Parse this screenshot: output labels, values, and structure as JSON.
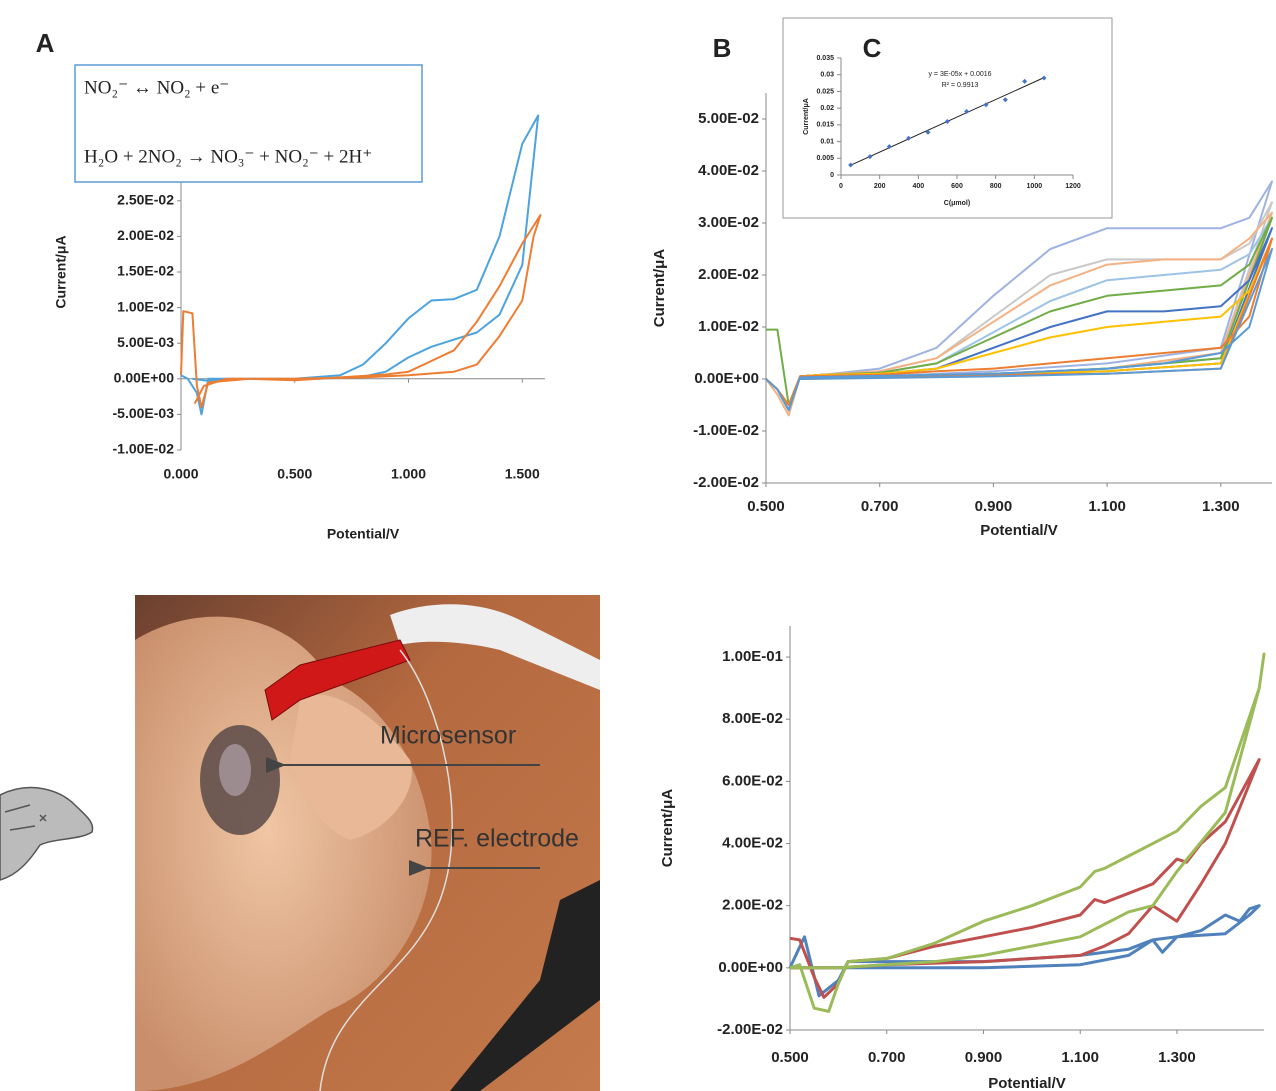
{
  "chart_data": [
    {
      "type": "line",
      "panel": "A",
      "x_label": "Potential/V",
      "y_label": "Current/μA",
      "annotations": [
        "NO₂⁻ ↔ NO₂ + e⁻",
        "H₂O + 2NO₂ → NO₃⁻ + NO₂⁻ + 2H⁺"
      ],
      "xlim": [
        0,
        1.6
      ],
      "ylim": [
        -0.01,
        0.04
      ],
      "xticks": [
        {
          "value": 0,
          "label": "0.000"
        },
        {
          "value": 0.5,
          "label": "0.500"
        },
        {
          "value": 1,
          "label": "1.000"
        },
        {
          "value": 1.5,
          "label": "1.500"
        }
      ],
      "yticks": [
        {
          "value": -0.01,
          "label": "-1.00E-02"
        },
        {
          "value": -0.005,
          "label": "-5.00E-03"
        },
        {
          "value": 0,
          "label": "0.00E+00"
        },
        {
          "value": 0.005,
          "label": "5.00E-03"
        },
        {
          "value": 0.01,
          "label": "1.00E-02"
        },
        {
          "value": 0.015,
          "label": "1.50E-02"
        },
        {
          "value": 0.02,
          "label": "2.00E-02"
        },
        {
          "value": 0.025,
          "label": "2.50E-02"
        }
      ],
      "series": [
        {
          "color": "#4da3dd",
          "x": [
            0,
            0.03,
            0.07,
            0.09,
            0.12,
            0.3,
            0.5,
            0.7,
            0.8,
            0.9,
            1.0,
            1.1,
            1.2,
            1.3,
            1.4,
            1.5,
            1.57,
            1.5,
            1.4,
            1.3,
            1.2,
            1.1,
            1.0,
            0.9,
            0.8,
            0.6,
            0.3,
            0.12,
            0.05
          ],
          "values": [
            0.0005,
            0,
            -0.002,
            -0.005,
            0,
            0,
            0,
            0.0005,
            0.002,
            0.005,
            0.0085,
            0.011,
            0.0112,
            0.0125,
            0.02,
            0.033,
            0.037,
            0.016,
            0.009,
            0.0065,
            0.0055,
            0.0045,
            0.003,
            0.001,
            0.0003,
            0,
            0,
            -0.0003,
            0
          ]
        },
        {
          "color": "#ed7d31",
          "x": [
            0,
            0.01,
            0.05,
            0.07,
            0.09,
            0.12,
            0.3,
            0.5,
            0.7,
            0.9,
            1.0,
            1.1,
            1.2,
            1.3,
            1.4,
            1.5,
            1.58,
            1.55,
            1.5,
            1.4,
            1.3,
            1.2,
            1.0,
            0.8,
            0.5,
            0.2,
            0.1,
            0.06
          ],
          "values": [
            0.0005,
            0.0095,
            0.0092,
            -0.001,
            -0.004,
            -0.0005,
            0,
            -0.0002,
            0.0002,
            0.0006,
            0.001,
            0.0025,
            0.004,
            0.008,
            0.013,
            0.019,
            0.023,
            0.02,
            0.011,
            0.006,
            0.002,
            0.001,
            0.0005,
            0.0002,
            0,
            0,
            -0.001,
            -0.0035
          ]
        }
      ]
    },
    {
      "type": "line",
      "panel": "B",
      "x_label": "Potential/V",
      "y_label": "Current/μA",
      "xlim": [
        0.5,
        1.39
      ],
      "ylim": [
        -0.02,
        0.055
      ],
      "xticks": [
        {
          "value": 0.5,
          "label": "0.500"
        },
        {
          "value": 0.7,
          "label": "0.700"
        },
        {
          "value": 0.9,
          "label": "0.900"
        },
        {
          "value": 1.1,
          "label": "1.100"
        },
        {
          "value": 1.3,
          "label": "1.300"
        }
      ],
      "yticks": [
        {
          "value": -0.02,
          "label": "-2.00E-02"
        },
        {
          "value": -0.01,
          "label": "-1.00E-02"
        },
        {
          "value": 0,
          "label": "0.00E+00"
        },
        {
          "value": 0.01,
          "label": "1.00E-02"
        },
        {
          "value": 0.02,
          "label": "2.00E-02"
        },
        {
          "value": 0.03,
          "label": "3.00E-02"
        },
        {
          "value": 0.04,
          "label": "4.00E-02"
        },
        {
          "value": 0.05,
          "label": "5.00E-02"
        }
      ],
      "x": [
        0.5,
        0.52,
        0.54,
        0.56,
        0.6,
        0.7,
        0.8,
        0.9,
        1.0,
        1.1,
        1.2,
        1.3,
        1.35,
        1.39,
        1.3,
        1.1,
        0.9,
        0.7,
        0.56
      ],
      "series": [
        {
          "color": "#9fb3e3",
          "values": [
            0,
            -0.002,
            -0.006,
            0.0005,
            0.0008,
            0.002,
            0.006,
            0.016,
            0.025,
            0.029,
            0.029,
            0.029,
            0.031,
            0.038,
            0.006,
            0.003,
            0.0015,
            0.0005,
            0
          ]
        },
        {
          "color": "#c9c9c9",
          "values": [
            0,
            -0.002,
            -0.006,
            0.0005,
            0.0008,
            0.0015,
            0.004,
            0.012,
            0.02,
            0.023,
            0.023,
            0.023,
            0.026,
            0.034,
            0.005,
            0.002,
            0.001,
            0.0005,
            0
          ]
        },
        {
          "color": "#f4b183",
          "values": [
            0,
            -0.003,
            -0.007,
            0.0005,
            0.0008,
            0.0015,
            0.004,
            0.011,
            0.018,
            0.022,
            0.023,
            0.023,
            0.027,
            0.032,
            0.005,
            0.002,
            0.001,
            0.0005,
            0
          ]
        },
        {
          "color": "#9dc3e6",
          "values": [
            0,
            -0.002,
            -0.006,
            0.0005,
            0.0008,
            0.0012,
            0.003,
            0.009,
            0.015,
            0.019,
            0.02,
            0.021,
            0.024,
            0.031,
            0.004,
            0.002,
            0.001,
            0.0005,
            0
          ]
        },
        {
          "color": "#70ad47",
          "values": [
            0.0095,
            0.0095,
            -0.005,
            0.0005,
            0.0008,
            0.0012,
            0.003,
            0.008,
            0.013,
            0.016,
            0.017,
            0.018,
            0.022,
            0.031,
            0.004,
            0.002,
            0.001,
            0.0005,
            0
          ]
        },
        {
          "color": "#4472c4",
          "values": [
            0,
            -0.002,
            -0.006,
            0.0005,
            0.0008,
            0.001,
            0.002,
            0.006,
            0.01,
            0.013,
            0.013,
            0.014,
            0.019,
            0.029,
            0.003,
            0.0015,
            0.001,
            0.0005,
            0
          ]
        },
        {
          "color": "#ffc000",
          "values": [
            0,
            -0.002,
            -0.005,
            0.0005,
            0.0008,
            0.001,
            0.002,
            0.005,
            0.008,
            0.01,
            0.011,
            0.012,
            0.017,
            0.027,
            0.003,
            0.0015,
            0.001,
            0.0005,
            0
          ]
        },
        {
          "color": "#ed7d31",
          "values": [
            0,
            -0.002,
            -0.005,
            0.0005,
            0.0006,
            0.0008,
            0.0015,
            0.002,
            0.003,
            0.004,
            0.005,
            0.006,
            0.012,
            0.027,
            0.002,
            0.001,
            0.0008,
            0.0003,
            0
          ]
        },
        {
          "color": "#5b9bd5",
          "values": [
            0,
            -0.002,
            -0.006,
            0.0003,
            0.0004,
            0.0006,
            0.0008,
            0.001,
            0.0015,
            0.002,
            0.003,
            0.005,
            0.01,
            0.025,
            0.002,
            0.001,
            0.0005,
            0.0002,
            0
          ]
        }
      ]
    },
    {
      "type": "scatter",
      "panel": "C",
      "x_label": "C(μmol)",
      "y_label": "Current/μA",
      "annotations": [
        "y = 3E-05x + 0.0016",
        "R² = 0.9913"
      ],
      "trendline": true,
      "color": "#4472c4",
      "xlim": [
        0,
        1200
      ],
      "ylim": [
        0,
        0.035
      ],
      "xticks": [
        0,
        200,
        400,
        600,
        800,
        1000,
        1200
      ],
      "yticks": [
        0,
        0.005,
        0.01,
        0.015,
        0.02,
        0.025,
        0.03,
        0.035
      ],
      "x": [
        50,
        150,
        250,
        350,
        450,
        550,
        650,
        750,
        850,
        950,
        1050
      ],
      "values": [
        0.003,
        0.0055,
        0.0085,
        0.011,
        0.0128,
        0.016,
        0.019,
        0.021,
        0.0225,
        0.028,
        0.029
      ]
    },
    {
      "type": "line",
      "x_label": "Potential/V",
      "y_label": "Current/μA",
      "xlim": [
        0.5,
        1.48
      ],
      "ylim": [
        -0.02,
        0.11
      ],
      "xticks": [
        {
          "value": 0.5,
          "label": "0.500"
        },
        {
          "value": 0.7,
          "label": "0.700"
        },
        {
          "value": 0.9,
          "label": "0.900"
        },
        {
          "value": 1.1,
          "label": "1.100"
        },
        {
          "value": 1.3,
          "label": "1.300"
        }
      ],
      "yticks": [
        {
          "value": -0.02,
          "label": "-2.00E-02"
        },
        {
          "value": 0,
          "label": "0.00E+00"
        },
        {
          "value": 0.02,
          "label": "2.00E-02"
        },
        {
          "value": 0.04,
          "label": "4.00E-02"
        },
        {
          "value": 0.06,
          "label": "6.00E-02"
        },
        {
          "value": 0.08,
          "label": "8.00E-02"
        },
        {
          "value": 0.1,
          "label": "1.00E-01"
        }
      ],
      "series": [
        {
          "color": "#4f81bd",
          "x": [
            0.5,
            0.53,
            0.56,
            0.6,
            0.62,
            0.8,
            0.9,
            1.0,
            1.1,
            1.2,
            1.25,
            1.3,
            1.35,
            1.4,
            1.43,
            1.45,
            1.47,
            1.45,
            1.4,
            1.3,
            1.27,
            1.25,
            1.2,
            1.1,
            0.9,
            0.7,
            0.5
          ],
          "values": [
            0,
            0.01,
            -0.009,
            -0.004,
            0.002,
            0.002,
            0.002,
            0.003,
            0.004,
            0.006,
            0.009,
            0.01,
            0.012,
            0.017,
            0.015,
            0.019,
            0.02,
            0.017,
            0.011,
            0.01,
            0.005,
            0.009,
            0.004,
            0.001,
            0,
            0,
            0
          ]
        },
        {
          "color": "#c0504d",
          "x": [
            0.5,
            0.52,
            0.55,
            0.57,
            0.6,
            0.62,
            0.7,
            0.8,
            0.9,
            1.0,
            1.1,
            1.13,
            1.15,
            1.2,
            1.25,
            1.3,
            1.32,
            1.35,
            1.4,
            1.47,
            1.4,
            1.35,
            1.3,
            1.25,
            1.2,
            1.15,
            1.1,
            0.9,
            0.7,
            0.6,
            0.5
          ],
          "values": [
            0.0095,
            0.009,
            -0.003,
            -0.0095,
            -0.005,
            0.002,
            0.003,
            0.007,
            0.01,
            0.013,
            0.017,
            0.022,
            0.021,
            0.024,
            0.027,
            0.035,
            0.034,
            0.04,
            0.047,
            0.067,
            0.04,
            0.027,
            0.015,
            0.02,
            0.011,
            0.007,
            0.004,
            0.002,
            0.001,
            0,
            0
          ]
        },
        {
          "color": "#9bbb59",
          "x": [
            0.5,
            0.52,
            0.55,
            0.58,
            0.6,
            0.62,
            0.7,
            0.8,
            0.9,
            1.0,
            1.1,
            1.13,
            1.15,
            1.2,
            1.3,
            1.35,
            1.4,
            1.47,
            1.48,
            1.47,
            1.4,
            1.3,
            1.25,
            1.2,
            1.15,
            1.1,
            1.0,
            0.9,
            0.8,
            0.7,
            0.6,
            0.55,
            0.5
          ],
          "values": [
            0,
            0.001,
            -0.013,
            -0.014,
            -0.005,
            0.002,
            0.003,
            0.008,
            0.015,
            0.02,
            0.026,
            0.031,
            0.032,
            0.036,
            0.044,
            0.052,
            0.058,
            0.09,
            0.101,
            0.09,
            0.05,
            0.031,
            0.02,
            0.018,
            0.014,
            0.01,
            0.007,
            0.004,
            0.002,
            0.001,
            0,
            0,
            0
          ]
        }
      ]
    }
  ],
  "photo": {
    "labels": [
      "Microsensor",
      "REF. electrode"
    ]
  }
}
